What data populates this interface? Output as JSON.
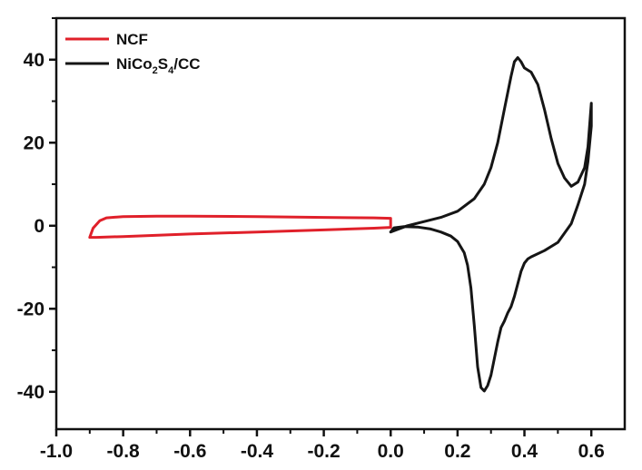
{
  "chart_data": {
    "type": "line",
    "title": "",
    "xlabel": "",
    "ylabel": "",
    "xlim": [
      -1.0,
      0.7
    ],
    "ylim": [
      -49,
      50
    ],
    "x_ticks": [
      -1.0,
      -0.8,
      -0.6,
      -0.4,
      -0.2,
      0.0,
      0.2,
      0.4,
      0.6
    ],
    "x_tick_labels": [
      "-1.0",
      "-0.8",
      "-0.6",
      "-0.4",
      "-0.2",
      "0.0",
      "0.2",
      "0.4",
      "0.6"
    ],
    "y_ticks": [
      -40,
      -20,
      0,
      20,
      40
    ],
    "y_tick_labels": [
      "-40",
      "-20",
      "0",
      "20",
      "40"
    ],
    "grid": false,
    "legend_position": "top-left",
    "legend": [
      {
        "text": "NCF",
        "color": "#e0202a"
      },
      {
        "text_main": "NiCo",
        "sub1": "2",
        "text_mid": "S",
        "sub2": "4",
        "text_end": "/CC",
        "color": "#151515"
      }
    ],
    "series": [
      {
        "name": "NCF",
        "color": "#e0202a",
        "closed": true,
        "x": [
          -0.9,
          -0.89,
          -0.87,
          -0.85,
          -0.8,
          -0.7,
          -0.6,
          -0.4,
          -0.2,
          -0.05,
          0.0,
          0.0,
          -0.05,
          -0.2,
          -0.4,
          -0.6,
          -0.8,
          -0.88,
          -0.9
        ],
        "y": [
          -2.8,
          -0.6,
          1.2,
          1.9,
          2.2,
          2.3,
          2.3,
          2.2,
          2.0,
          1.9,
          1.8,
          -0.4,
          -0.6,
          -1.0,
          -1.5,
          -2.0,
          -2.6,
          -2.8,
          -2.8
        ]
      },
      {
        "name": "NiCo2S4/CC",
        "color": "#151515",
        "closed": false,
        "x": [
          0.0,
          0.05,
          0.1,
          0.15,
          0.2,
          0.25,
          0.28,
          0.3,
          0.32,
          0.34,
          0.36,
          0.37,
          0.38,
          0.39,
          0.4,
          0.42,
          0.44,
          0.46,
          0.48,
          0.5,
          0.52,
          0.54,
          0.56,
          0.58,
          0.59,
          0.6,
          0.6,
          0.59,
          0.58,
          0.56,
          0.54,
          0.5,
          0.46,
          0.42,
          0.41,
          0.4,
          0.39,
          0.38,
          0.37,
          0.36,
          0.35,
          0.34,
          0.33,
          0.32,
          0.31,
          0.3,
          0.29,
          0.28,
          0.27,
          0.26,
          0.25,
          0.24,
          0.23,
          0.22,
          0.2,
          0.18,
          0.15,
          0.12,
          0.08,
          0.04,
          0.01,
          0.0
        ],
        "y": [
          -1.5,
          0.0,
          1.0,
          2.0,
          3.5,
          6.5,
          10.0,
          14.0,
          20.0,
          28.0,
          36.0,
          39.5,
          40.5,
          39.5,
          38.0,
          37.0,
          34.0,
          28.0,
          21.0,
          15.0,
          11.5,
          9.5,
          10.5,
          14.0,
          19.0,
          29.5,
          24.0,
          15.5,
          10.0,
          5.0,
          0.5,
          -4.0,
          -6.0,
          -7.5,
          -8.0,
          -9.0,
          -11.0,
          -14.0,
          -17.0,
          -19.5,
          -21.0,
          -23.0,
          -24.5,
          -28.0,
          -32.0,
          -36.0,
          -38.5,
          -39.8,
          -39.0,
          -34.0,
          -24.0,
          -15.0,
          -9.5,
          -6.5,
          -3.8,
          -2.5,
          -1.5,
          -0.8,
          -0.3,
          -0.2,
          -0.5,
          -1.5
        ]
      }
    ]
  }
}
